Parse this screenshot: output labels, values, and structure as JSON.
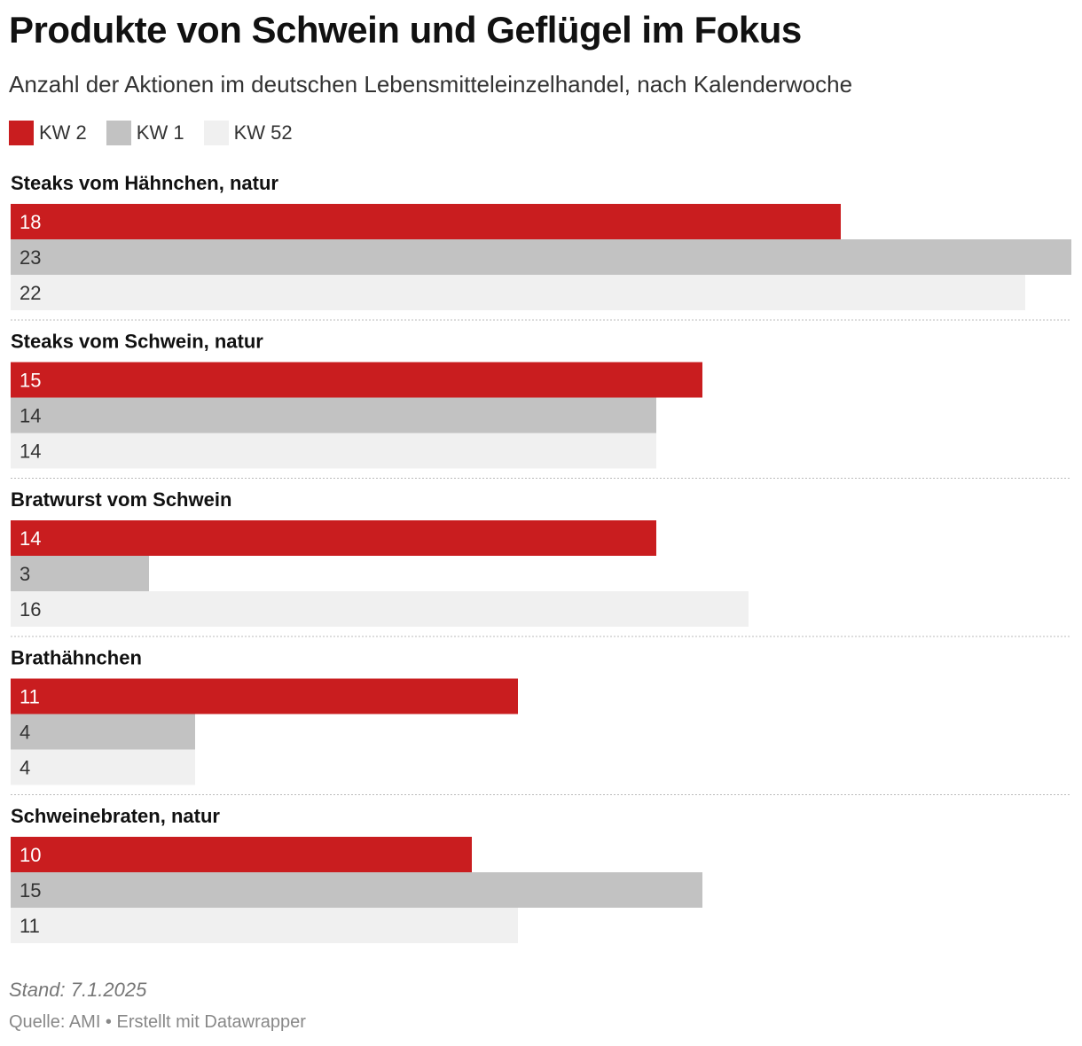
{
  "chart_data": {
    "type": "bar",
    "orientation": "horizontal",
    "title": "Produkte von Schwein und Geflügel im Fokus",
    "subtitle": "Anzahl der Aktionen im deutschen Lebensmitteleinzelhandel, nach Kalenderwoche",
    "categories": [
      "Steaks vom Hähnchen, natur",
      "Steaks vom Schwein, natur",
      "Bratwurst vom Schwein",
      "Brathähnchen",
      "Schweinebraten, natur"
    ],
    "series": [
      {
        "name": "KW 2",
        "color": "#c91d1f",
        "values": [
          18,
          15,
          14,
          11,
          10
        ]
      },
      {
        "name": "KW 1",
        "color": "#c2c2c2",
        "values": [
          23,
          14,
          3,
          4,
          15
        ]
      },
      {
        "name": "KW 52",
        "color": "#f0f0f0",
        "values": [
          22,
          14,
          16,
          4,
          11
        ]
      }
    ],
    "xlim": [
      0,
      23
    ],
    "grid": false,
    "legend_position": "top-left",
    "data_labels": "inside-left"
  },
  "footer": {
    "stand": "Stand: 7.1.2025",
    "source": "Quelle: AMI • Erstellt mit Datawrapper"
  },
  "colors": {
    "label_on_dark": "#ffffff",
    "label_on_light": "#333333",
    "separator": "#bbbbbb"
  }
}
